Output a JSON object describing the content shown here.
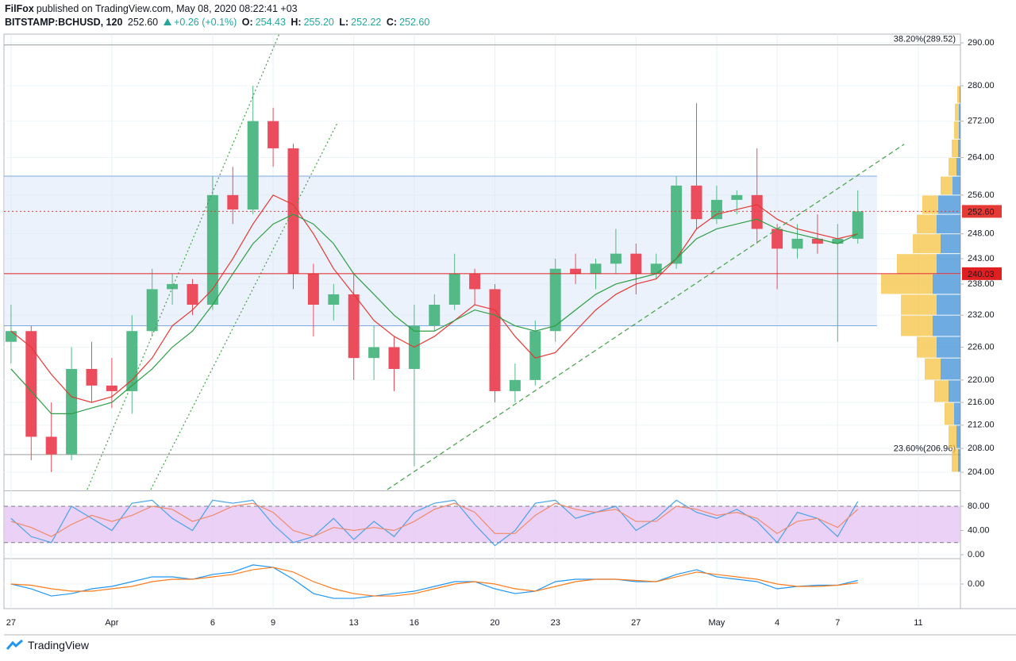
{
  "header": {
    "author": "FilFox",
    "published": "published on TradingView.com, May 08, 2020 08:22:41 +03",
    "symbol": "BITSTAMP:BCHUSD, 120",
    "price": "252.60",
    "change": "+0.26 (+0.1%)",
    "ohlc": [
      {
        "label": "O:",
        "value": "254.43"
      },
      {
        "label": "H:",
        "value": "255.20"
      },
      {
        "label": "L:",
        "value": "252.22"
      },
      {
        "label": "C:",
        "value": "252.60"
      }
    ]
  },
  "footer": {
    "brand": "TradingView"
  },
  "chart_data": [
    {
      "type": "candlestick",
      "log": true,
      "grid": true,
      "up_color": "#53b987",
      "down_color": "#eb4d5c",
      "xlim": [
        -0.35,
        47.09
      ],
      "ylim": [
        201.1,
        292.1
      ],
      "xticks": [
        {
          "value": 0,
          "label": "27"
        },
        {
          "value": 5,
          "label": "Apr"
        },
        {
          "value": 10,
          "label": "6"
        },
        {
          "value": 13,
          "label": "9"
        },
        {
          "value": 17,
          "label": "13"
        },
        {
          "value": 20,
          "label": "16"
        },
        {
          "value": 24,
          "label": "20"
        },
        {
          "value": 27,
          "label": "23"
        },
        {
          "value": 31,
          "label": "27"
        },
        {
          "value": 35,
          "label": "May"
        },
        {
          "value": 38,
          "label": "4"
        },
        {
          "value": 41,
          "label": "7"
        },
        {
          "value": 45,
          "label": "11"
        }
      ],
      "yticks": [
        {
          "value": 290,
          "label": "290.00"
        },
        {
          "value": 280,
          "label": "280.00"
        },
        {
          "value": 272,
          "label": "272.00"
        },
        {
          "value": 264,
          "label": "264.00"
        },
        {
          "value": 256,
          "label": "256.00"
        },
        {
          "value": 248,
          "label": "248.00"
        },
        {
          "value": 243,
          "label": "243.00"
        },
        {
          "value": 238,
          "label": "238.00"
        },
        {
          "value": 232,
          "label": "232.00"
        },
        {
          "value": 226,
          "label": "226.00"
        },
        {
          "value": 220,
          "label": "220.00"
        },
        {
          "value": 216,
          "label": "216.00"
        },
        {
          "value": 212,
          "label": "212.00"
        },
        {
          "value": 208,
          "label": "208.00"
        },
        {
          "value": 204,
          "label": "204.00"
        }
      ],
      "x": [
        0,
        1,
        2,
        3,
        4,
        5,
        6,
        7,
        8,
        9,
        10,
        11,
        12,
        13,
        14,
        15,
        16,
        17,
        18,
        19,
        20,
        21,
        22,
        23,
        24,
        25,
        26,
        27,
        28,
        29,
        30,
        31,
        32,
        33,
        34,
        35,
        36,
        37,
        38,
        39,
        40,
        41,
        42
      ],
      "open": [
        227,
        229,
        210,
        207,
        222,
        219,
        218,
        229,
        237,
        238,
        234,
        256,
        253,
        272,
        266,
        240,
        234,
        236,
        224,
        226,
        222,
        230,
        234,
        240,
        237,
        218,
        220,
        229,
        241,
        240,
        242,
        244,
        240,
        242,
        258,
        251,
        255,
        256,
        249,
        245,
        247,
        246,
        247
      ],
      "high": [
        234,
        230,
        216,
        226,
        227,
        224,
        232,
        241,
        240,
        239,
        260,
        262,
        280,
        275,
        267,
        242,
        238,
        240,
        230,
        228,
        234,
        236,
        244,
        241,
        238,
        223,
        231,
        243,
        244,
        243,
        249,
        246,
        244,
        260,
        276,
        258,
        257,
        266,
        250,
        250,
        252,
        250,
        257
      ],
      "low": [
        223,
        206,
        204,
        206,
        216,
        215,
        214,
        228,
        234,
        232,
        233,
        250,
        252,
        262,
        237,
        228,
        231,
        220,
        220,
        218,
        205,
        229,
        233,
        234,
        216,
        216,
        219,
        227,
        238,
        237,
        240,
        236,
        239,
        241,
        249,
        250,
        252,
        246,
        237,
        243,
        244,
        227,
        246
      ],
      "close": [
        229,
        210,
        207,
        222,
        219,
        218,
        229,
        237,
        238,
        234,
        256,
        253,
        272,
        266,
        240,
        234,
        236,
        224,
        226,
        222,
        230,
        234,
        240,
        237,
        218,
        220,
        229,
        241,
        240,
        242,
        244,
        240,
        242,
        258,
        251,
        255,
        256,
        249,
        245,
        247,
        246,
        247,
        252.6
      ],
      "series": [
        {
          "color": "#e53935",
          "values": [
            229,
            226,
            221,
            217,
            216,
            217,
            220,
            224,
            230,
            233,
            237,
            243,
            250,
            256,
            254,
            248,
            241,
            236,
            231,
            228,
            226,
            228,
            231,
            234,
            233,
            228,
            224,
            225,
            229,
            233,
            236,
            238,
            239,
            243,
            249,
            252,
            253,
            254,
            251,
            249,
            248,
            247,
            248
          ]
        },
        {
          "color": "#2e9d45",
          "values": [
            222,
            218,
            214,
            214,
            215,
            216,
            219,
            222,
            226,
            229,
            234,
            240,
            246,
            250,
            252,
            250,
            246,
            240,
            236,
            232,
            229,
            229,
            231,
            233,
            232,
            230,
            229,
            230,
            233,
            236,
            238,
            239,
            240,
            243,
            247,
            249,
            250,
            251,
            249,
            248,
            247,
            246,
            248
          ]
        }
      ],
      "zone": {
        "from": 230,
        "to": 260,
        "x": [
          -0.35,
          42.95
        ],
        "color": "#dbe8f7",
        "border": "#7fa8e0"
      },
      "fib_levels": [
        {
          "value": 289.52,
          "label": "38.20%(289.52)"
        },
        {
          "value": 206.96,
          "label": "23.60%(206.96)"
        }
      ],
      "price_lines": [
        {
          "value": 252.6,
          "label": "252.60",
          "color": "#e53935",
          "dash": "dotted"
        },
        {
          "value": 240.03,
          "label": "240.03",
          "color": "#e02020",
          "dash": "solid"
        }
      ],
      "trendlines": [
        {
          "color": "#43a047",
          "dash": "dotted",
          "x": [
            3.78,
            13.3
          ],
          "y": [
            201.1,
            292.1
          ]
        },
        {
          "color": "#43a047",
          "dash": "dotted",
          "x": [
            6.93,
            16.2
          ],
          "y": [
            201.1,
            271.7
          ]
        },
        {
          "color": "#43a047",
          "dash": "dashed",
          "x": [
            18.66,
            44.3
          ],
          "y": [
            201.1,
            266.9
          ]
        }
      ],
      "volume_profile": {
        "up_color": "#3d8fd6",
        "down_color": "#f5c342",
        "prices": [
          206,
          210,
          214,
          218,
          222,
          226,
          230,
          234,
          238,
          242,
          246,
          250,
          254,
          258,
          262,
          266,
          270,
          274,
          278
        ],
        "up": [
          3,
          5,
          8,
          15,
          25,
          30,
          35,
          30,
          35,
          30,
          25,
          30,
          28,
          10,
          5,
          3,
          2,
          2,
          1
        ],
        "down": [
          8,
          10,
          12,
          18,
          20,
          25,
          40,
          45,
          65,
          50,
          35,
          25,
          20,
          15,
          10,
          8,
          6,
          5,
          3
        ]
      }
    },
    {
      "type": "line",
      "grid": true,
      "ylim": [
        -5.2,
        103.6
      ],
      "yticks": [
        {
          "value": 0,
          "label": "0.00"
        },
        {
          "value": 40,
          "label": "40.00"
        },
        {
          "value": 80,
          "label": "80.00"
        }
      ],
      "band": [
        20,
        80
      ],
      "band_color": "#e6c6f4",
      "series": [
        {
          "color": "#4aa3e8",
          "values": [
            60,
            30,
            20,
            80,
            60,
            40,
            85,
            90,
            60,
            40,
            90,
            85,
            90,
            50,
            20,
            30,
            60,
            25,
            55,
            30,
            70,
            85,
            90,
            50,
            15,
            40,
            85,
            90,
            60,
            70,
            80,
            40,
            60,
            90,
            70,
            60,
            75,
            55,
            20,
            70,
            60,
            30,
            88
          ]
        },
        {
          "color": "#ef8a6a",
          "values": [
            55,
            45,
            30,
            50,
            65,
            55,
            65,
            80,
            75,
            55,
            65,
            80,
            85,
            70,
            40,
            30,
            45,
            40,
            45,
            40,
            55,
            75,
            85,
            70,
            35,
            35,
            65,
            85,
            75,
            70,
            75,
            55,
            55,
            80,
            75,
            65,
            70,
            60,
            35,
            55,
            60,
            45,
            75
          ]
        }
      ]
    },
    {
      "type": "line",
      "grid": true,
      "ylim": [
        -10.3,
        10.3
      ],
      "yticks": [
        {
          "value": 0,
          "label": "0.00"
        }
      ],
      "series": [
        {
          "color": "#2196f3",
          "values": [
            0,
            -2,
            -5,
            -4,
            -2,
            -1,
            1,
            3,
            3,
            2,
            4,
            5,
            8,
            7,
            2,
            -4,
            -6,
            -6,
            -5,
            -4,
            -3,
            -1,
            1,
            1,
            -2,
            -4,
            -3,
            1,
            2,
            2,
            2,
            1,
            1,
            4,
            6,
            3,
            2,
            1,
            -2,
            -1,
            -0.5,
            -0.5,
            1.5
          ]
        },
        {
          "color": "#ff7b1c",
          "values": [
            0,
            -0.5,
            -2,
            -3,
            -3,
            -2,
            -1,
            1,
            2,
            2,
            3,
            4,
            6,
            7,
            5,
            1,
            -2,
            -4,
            -5,
            -5,
            -4,
            -2,
            0,
            1,
            0,
            -2,
            -3,
            -1,
            1,
            2,
            2,
            1.5,
            1,
            3,
            5,
            4,
            3,
            2,
            0,
            -1,
            -1,
            -0.5,
            0.5
          ]
        }
      ]
    }
  ]
}
